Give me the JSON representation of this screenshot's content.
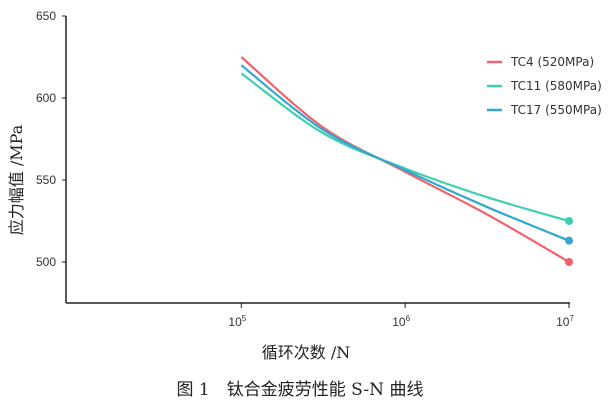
{
  "chart_data": {
    "type": "line",
    "title": "",
    "caption": "图 1　钛合金疲劳性能 S-N 曲线",
    "xlabel": "循环次数 /N",
    "ylabel": "应力幅值 /MPa",
    "xscale": "log",
    "xlim_log10": [
      3.93,
      7
    ],
    "ylim": [
      475,
      650
    ],
    "x_ticks": [
      {
        "exp": 5,
        "label": "10",
        "sup": "5"
      },
      {
        "exp": 6,
        "label": "10",
        "sup": "6"
      },
      {
        "exp": 7,
        "label": "10",
        "sup": "7"
      }
    ],
    "y_ticks": [
      500,
      550,
      600,
      650
    ],
    "grid": false,
    "legend_position": "top-right",
    "x": [
      100000,
      316228,
      1000000,
      3162278,
      10000000
    ],
    "series": [
      {
        "name": "TC4 (520MPa)",
        "color": "#f2606a",
        "values": [
          625,
          582,
          555,
          529,
          500
        ]
      },
      {
        "name": "TC11 (580MPa)",
        "color": "#3fcfb0",
        "values": [
          615,
          578.5,
          557,
          539.5,
          525
        ]
      },
      {
        "name": "TC17 (550MPa)",
        "color": "#30a9cf",
        "values": [
          620,
          580.5,
          556,
          533.5,
          513
        ]
      }
    ]
  }
}
